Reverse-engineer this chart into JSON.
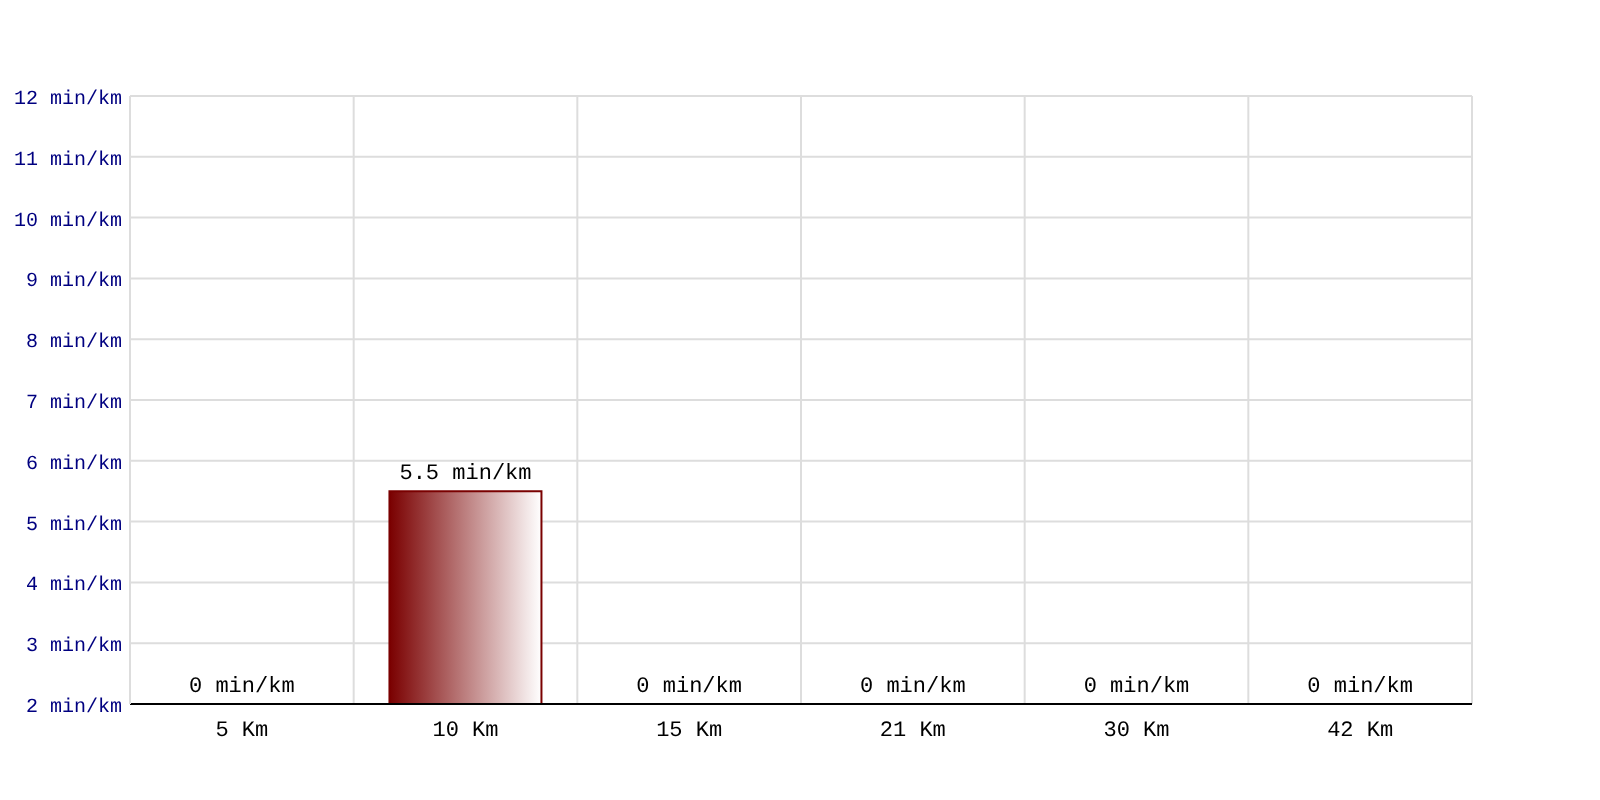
{
  "chart_data": {
    "type": "bar",
    "categories": [
      "5 Km",
      "10 Km",
      "15 Km",
      "21 Km",
      "30 Km",
      "42 Km"
    ],
    "values": [
      null,
      5.5,
      null,
      null,
      null,
      null
    ],
    "value_labels": [
      "0 min/km",
      "5.5 min/km",
      "0 min/km",
      "0 min/km",
      "0 min/km",
      "0 min/km"
    ],
    "color": "#7a0000",
    "ylim": [
      2,
      12
    ],
    "yticks": [
      {
        "value": 2,
        "label": "2 min/km"
      },
      {
        "value": 3,
        "label": "3 min/km"
      },
      {
        "value": 4,
        "label": "4 min/km"
      },
      {
        "value": 5,
        "label": "5 min/km"
      },
      {
        "value": 6,
        "label": "6 min/km"
      },
      {
        "value": 7,
        "label": "7 min/km"
      },
      {
        "value": 8,
        "label": "8 min/km"
      },
      {
        "value": 9,
        "label": "9 min/km"
      },
      {
        "value": 10,
        "label": "10 min/km"
      },
      {
        "value": 11,
        "label": "11 min/km"
      },
      {
        "value": 12,
        "label": "12 min/km"
      }
    ],
    "grid": true
  }
}
